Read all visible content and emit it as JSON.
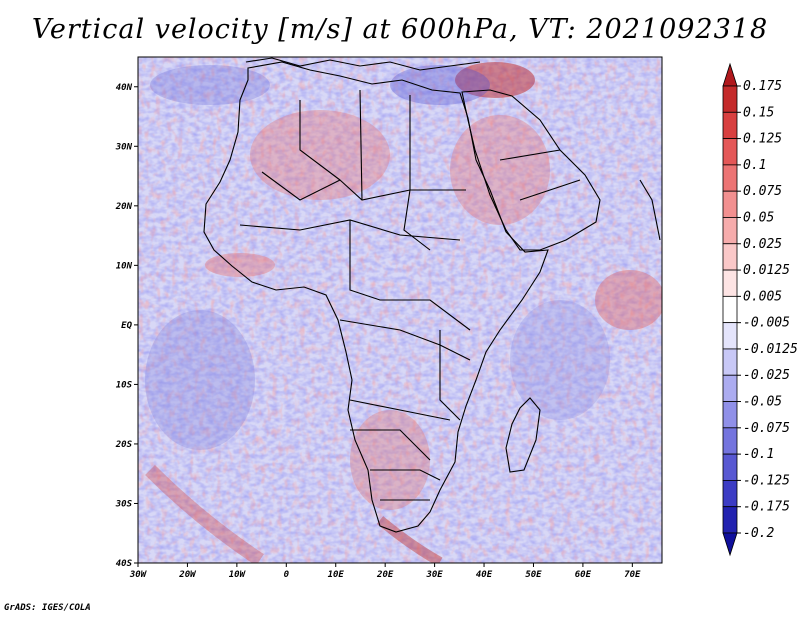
{
  "title": "Vertical velocity [m/s] at 600hPa, VT: 2021092318",
  "footer": "GrADS: IGES/COLA",
  "map": {
    "lon_range": [
      -30,
      76
    ],
    "lat_range": [
      -40,
      45
    ],
    "x_ticks": [
      {
        "lon": -30,
        "label": "30W"
      },
      {
        "lon": -20,
        "label": "20W"
      },
      {
        "lon": -10,
        "label": "10W"
      },
      {
        "lon": 0,
        "label": "0"
      },
      {
        "lon": 10,
        "label": "10E"
      },
      {
        "lon": 20,
        "label": "20E"
      },
      {
        "lon": 30,
        "label": "30E"
      },
      {
        "lon": 40,
        "label": "40E"
      },
      {
        "lon": 50,
        "label": "50E"
      },
      {
        "lon": 60,
        "label": "60E"
      },
      {
        "lon": 70,
        "label": "70E"
      }
    ],
    "y_ticks": [
      {
        "lat": 40,
        "label": "40N"
      },
      {
        "lat": 30,
        "label": "30N"
      },
      {
        "lat": 20,
        "label": "20N"
      },
      {
        "lat": 10,
        "label": "10N"
      },
      {
        "lat": 0,
        "label": "EQ"
      },
      {
        "lat": -10,
        "label": "10S"
      },
      {
        "lat": -20,
        "label": "20S"
      },
      {
        "lat": -30,
        "label": "30S"
      },
      {
        "lat": -40,
        "label": "40S"
      }
    ]
  },
  "colorbar": {
    "labels": [
      "0.175",
      "0.15",
      "0.125",
      "0.1",
      "0.075",
      "0.05",
      "0.025",
      "0.0125",
      "0.005",
      "-0.005",
      "-0.0125",
      "-0.025",
      "-0.05",
      "-0.075",
      "-0.1",
      "-0.125",
      "-0.175",
      "-0.2"
    ],
    "colors": [
      "#b0181c",
      "#c42a2a",
      "#d84040",
      "#e45858",
      "#ec7474",
      "#f29090",
      "#f6acac",
      "#fac8c8",
      "#fde4e4",
      "#ffffff",
      "#e4e4fb",
      "#c8c8f6",
      "#acacf0",
      "#9090e8",
      "#7474de",
      "#5858d2",
      "#3c3cc4",
      "#2222b0",
      "#10109c"
    ]
  }
}
